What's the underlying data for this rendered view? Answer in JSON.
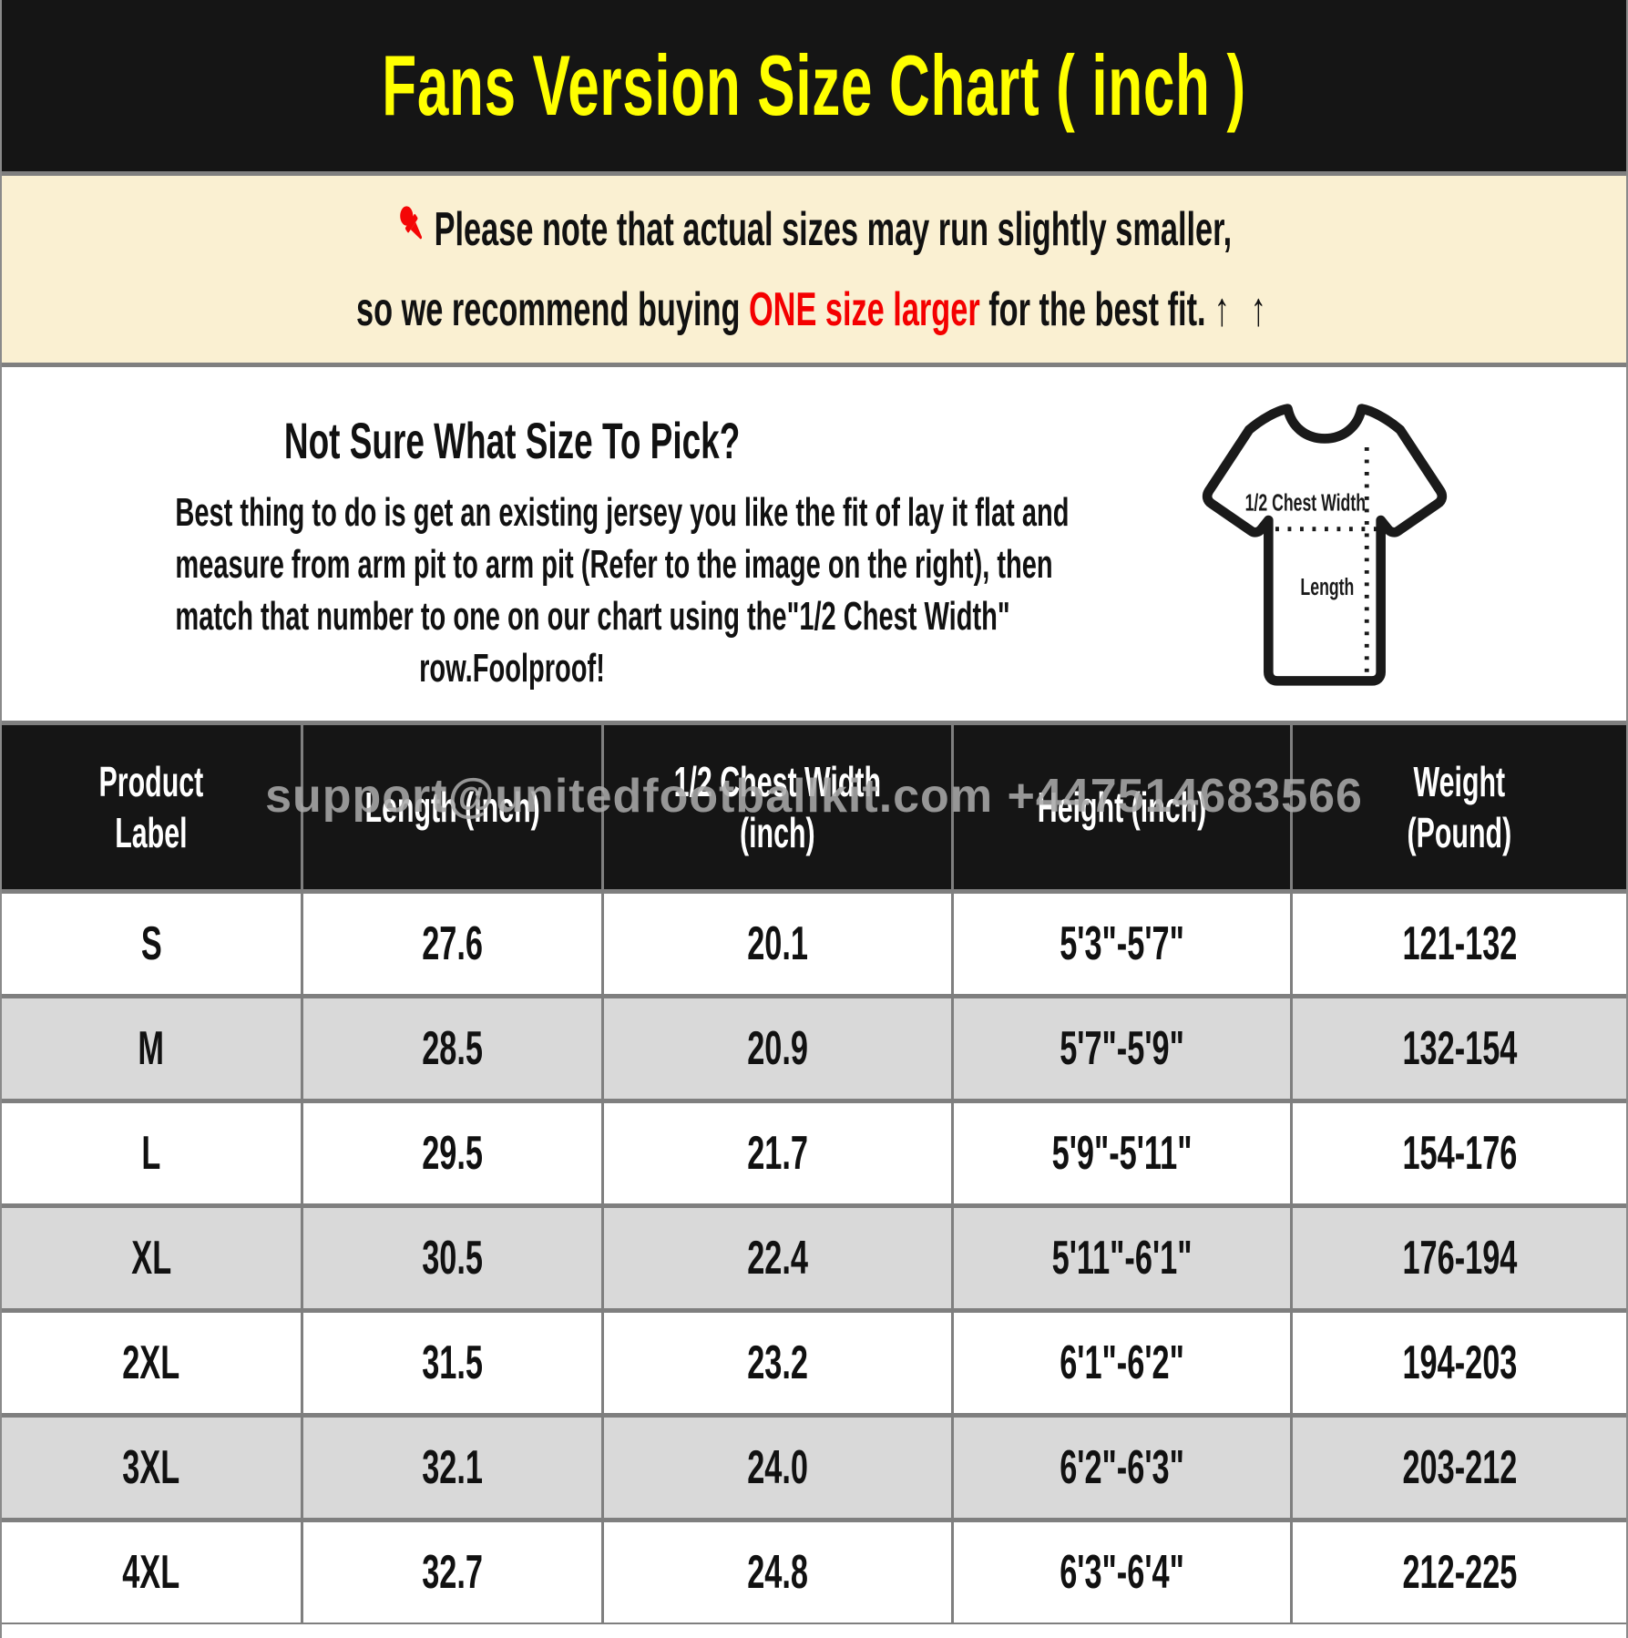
{
  "title": "Fans Version Size Chart ( inch )",
  "note": {
    "pin_icon": "red-pushpin",
    "line1": "Please note that actual sizes may run slightly smaller,",
    "line2_prefix": "so we recommend buying ",
    "line2_highlight": "ONE size larger",
    "line2_suffix": " for the best fit.",
    "arrows": "↑ ↑"
  },
  "guide": {
    "heading": "Not Sure What Size To Pick?",
    "lines": [
      "Best thing to do is get an existing jersey you like the fit of lay it flat and",
      "measure from arm pit to arm pit (Refer to the image on the right), then",
      "match that number to one on our chart using the\"1/2 Chest Width\"",
      "row.Foolproof!"
    ],
    "diagram": {
      "chest_label": "1/2 Chest Width",
      "length_label": "Length"
    }
  },
  "watermark": "support@unitedfootballkit.com +447514683566",
  "colors": {
    "title_accent": "#ffff00",
    "highlight_red": "#f40000",
    "note_background": "#faf0d2",
    "header_background": "#151515",
    "row_alt_gray": "#d9d9d9",
    "divider_gray": "#7f7f7f",
    "watermark_gray": "#a8a8a8"
  },
  "chart_data": {
    "type": "table",
    "title": "Fans Version Size Chart ( inch )",
    "columns": [
      "Product\nLabel",
      "Length (inch)",
      "1/2 Chest Width\n(inch)",
      "Height (inch)",
      "Weight\n(Pound)"
    ],
    "rows": [
      [
        "S",
        "27.6",
        "20.1",
        "5'3\"-5'7\"",
        "121-132"
      ],
      [
        "M",
        "28.5",
        "20.9",
        "5'7\"-5'9\"",
        "132-154"
      ],
      [
        "L",
        "29.5",
        "21.7",
        "5'9\"-5'11\"",
        "154-176"
      ],
      [
        "XL",
        "30.5",
        "22.4",
        "5'11\"-6'1\"",
        "176-194"
      ],
      [
        "2XL",
        "31.5",
        "23.2",
        "6'1\"-6'2\"",
        "194-203"
      ],
      [
        "3XL",
        "32.1",
        "24.0",
        "6'2\"-6'3\"",
        "203-212"
      ],
      [
        "4XL",
        "32.7",
        "24.8",
        "6'3\"-6'4\"",
        "212-225"
      ]
    ]
  }
}
